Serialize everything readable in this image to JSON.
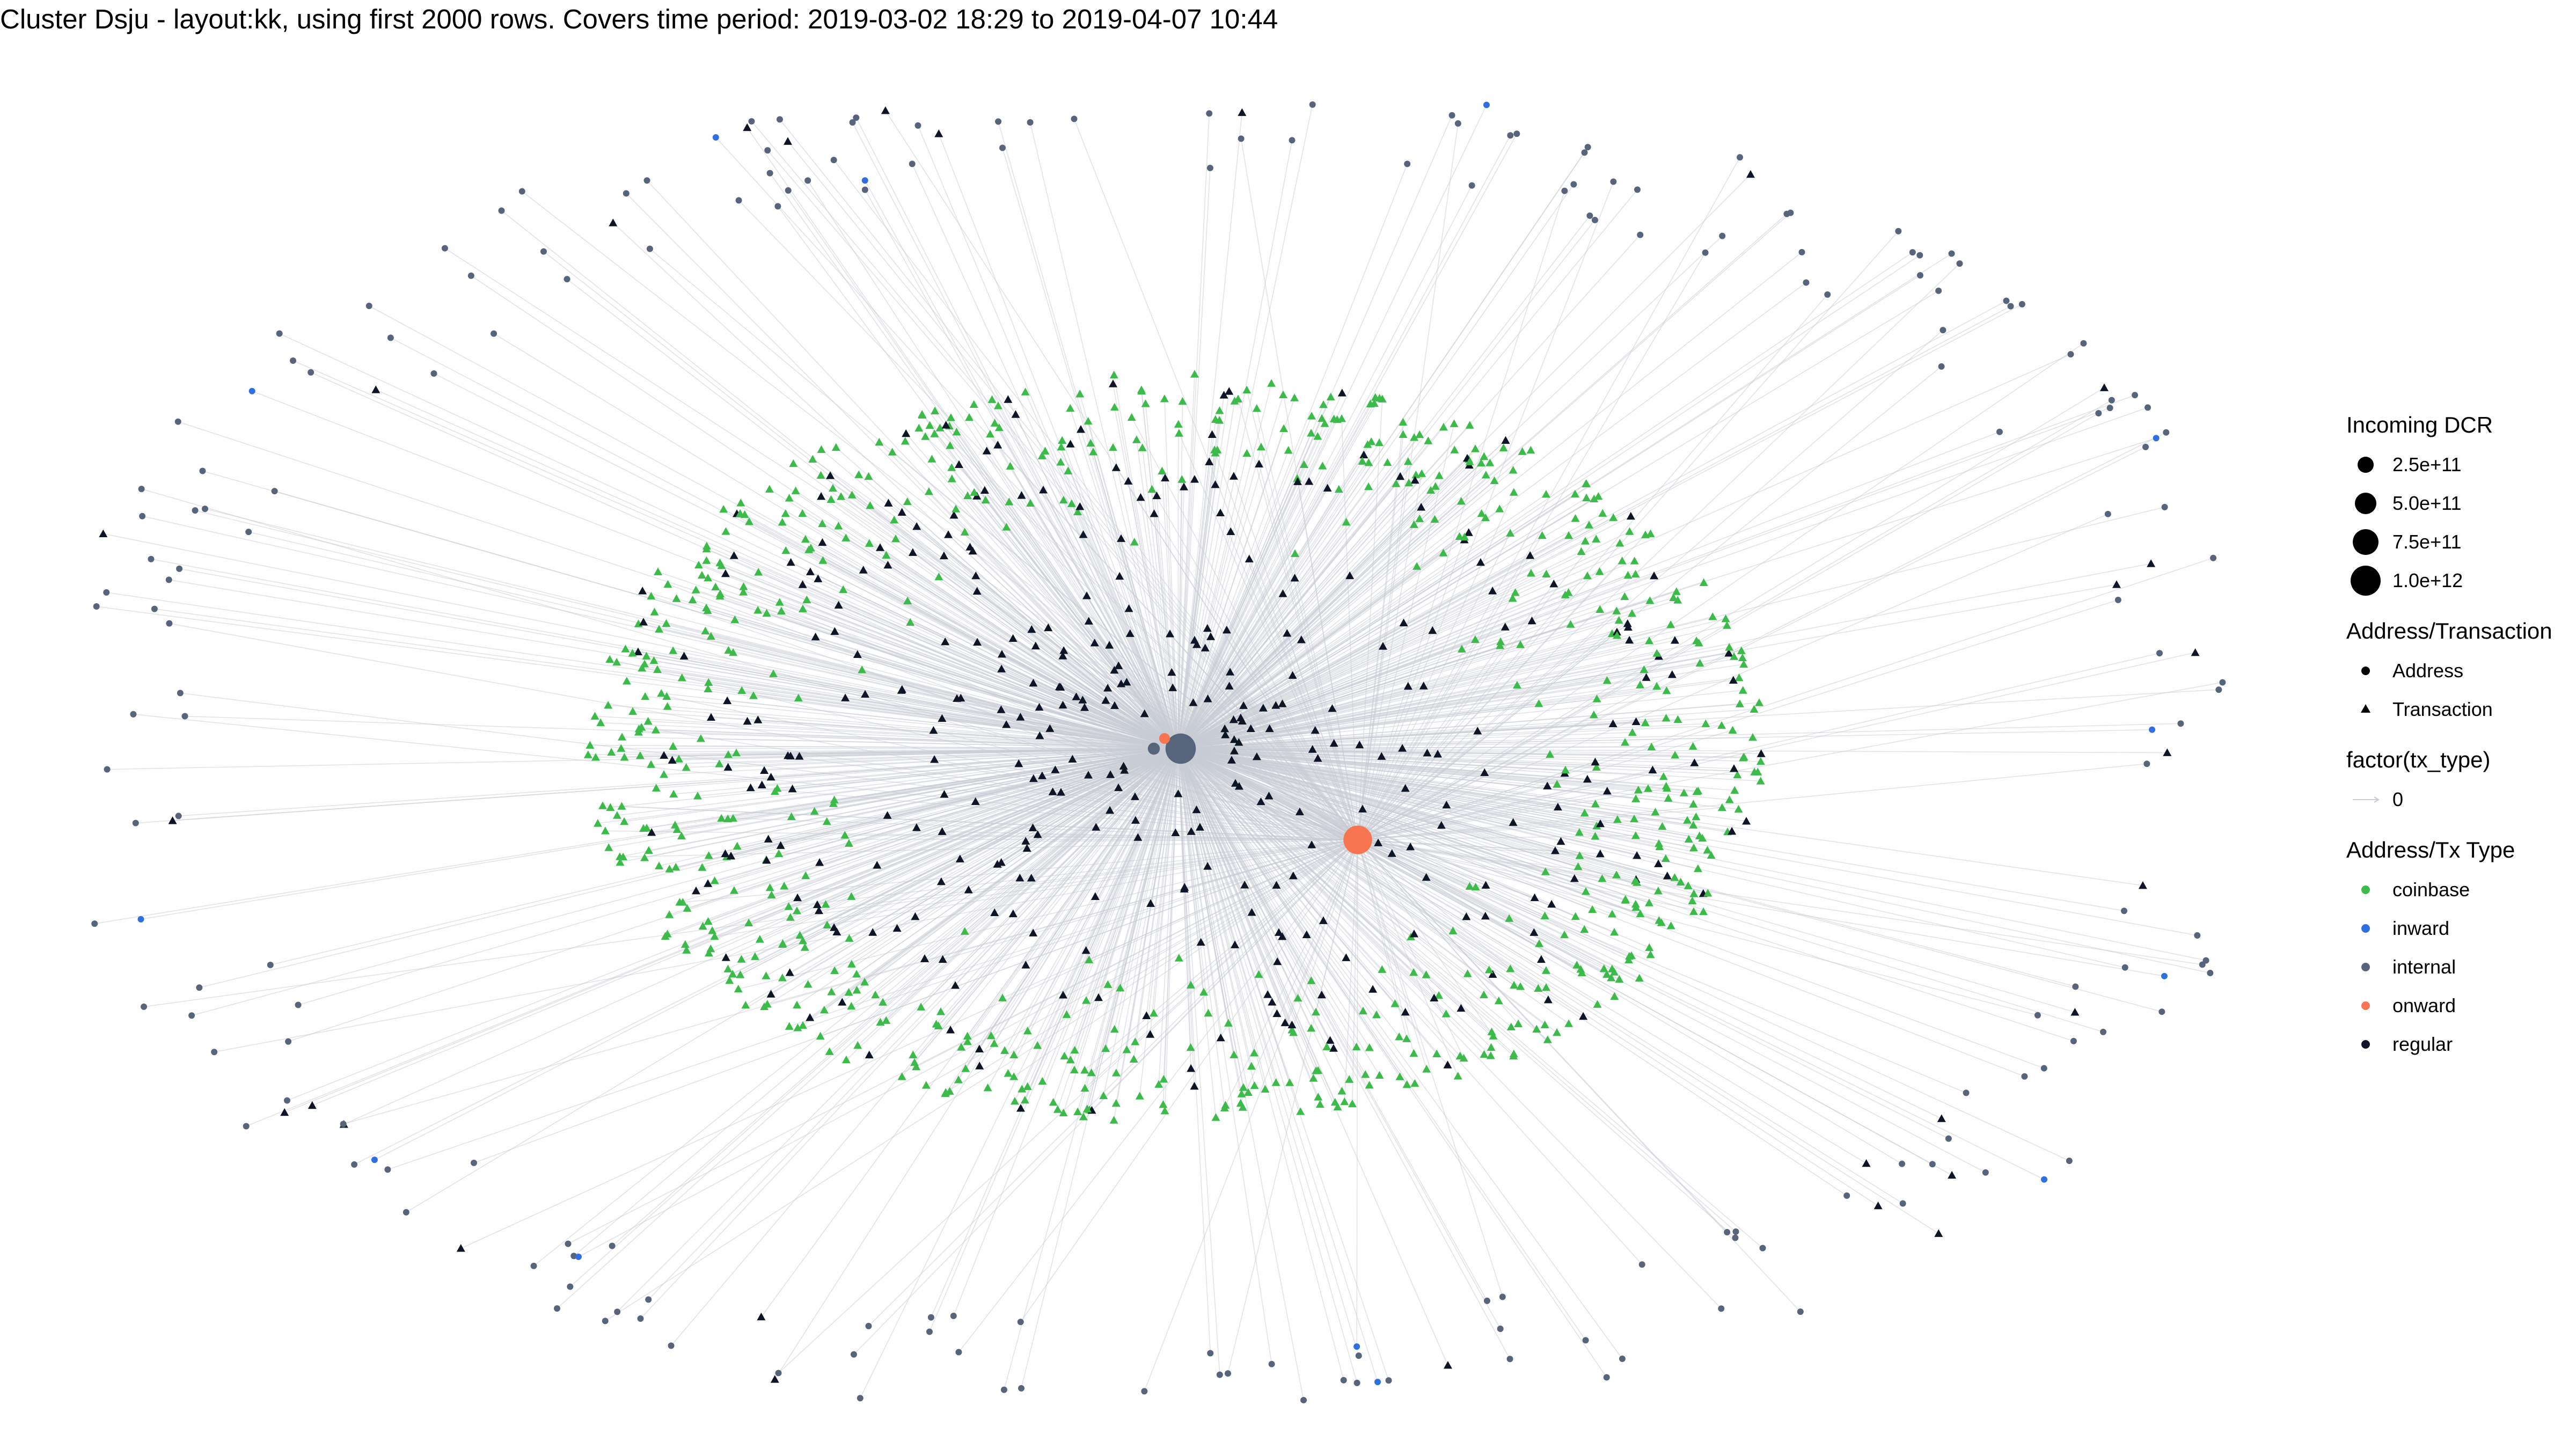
{
  "title": "Cluster Dsju - layout:kk, using first 2000 rows. Covers time period: 2019-03-02 18:29 to 2019-04-07 10:44",
  "legend": {
    "size": {
      "title": "Incoming DCR",
      "items": [
        "2.5e+11",
        "5.0e+11",
        "7.5e+11",
        "1.0e+12"
      ]
    },
    "shape": {
      "title": "Address/Transaction",
      "items": [
        {
          "label": "Address",
          "shape": "circle"
        },
        {
          "label": "Transaction",
          "shape": "triangle"
        }
      ]
    },
    "edge": {
      "title": "factor(tx_type)",
      "items": [
        {
          "label": "0"
        }
      ]
    },
    "color": {
      "title": "Address/Tx Type",
      "items": [
        {
          "label": "coinbase",
          "color": "#3dbb4a"
        },
        {
          "label": "inward",
          "color": "#2f6fe0"
        },
        {
          "label": "internal",
          "color": "#56657c"
        },
        {
          "label": "onward",
          "color": "#f87552"
        },
        {
          "label": "regular",
          "color": "#0d1526"
        }
      ]
    }
  },
  "colors": {
    "edge": "#c9ccd4",
    "coinbase": "#3dbb4a",
    "inward": "#2f6fe0",
    "internal": "#56657c",
    "onward": "#f87552",
    "regular": "#0d1526"
  },
  "hubs": [
    {
      "type": "internal",
      "incoming": 950000000000
    },
    {
      "type": "onward",
      "incoming": 850000000000
    },
    {
      "type": "onward",
      "incoming": 120000000000
    },
    {
      "type": "internal",
      "incoming": 150000000000
    }
  ]
}
